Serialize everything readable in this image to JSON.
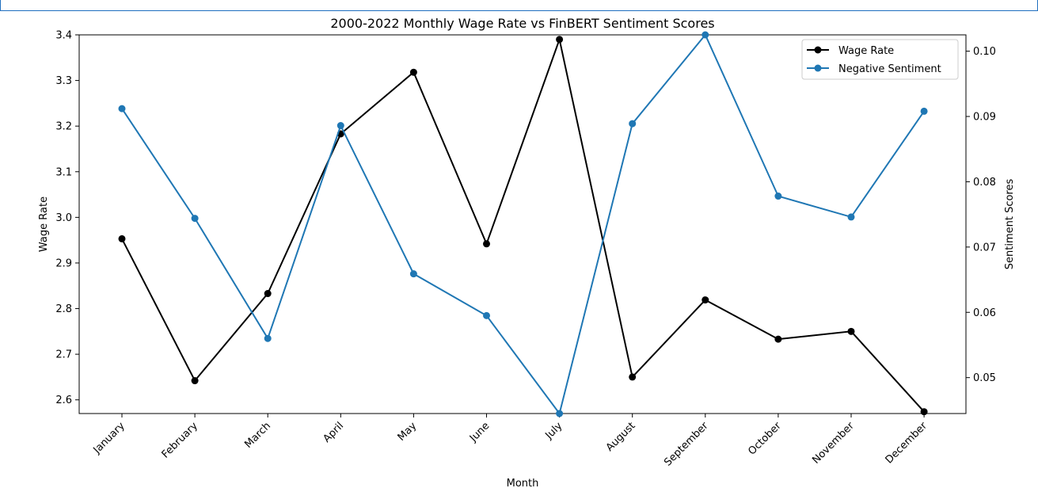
{
  "chart_data": {
    "type": "line",
    "title": "2000-2022 Monthly Wage Rate vs FinBERT Sentiment Scores",
    "xlabel": "Month",
    "ylabel_left": "Wage Rate",
    "ylabel_right": "Sentiment Scores",
    "categories": [
      "January",
      "February",
      "March",
      "April",
      "May",
      "June",
      "July",
      "August",
      "September",
      "October",
      "November",
      "December"
    ],
    "y_left_ticks": [
      "2.6",
      "2.7",
      "2.8",
      "2.9",
      "3.0",
      "3.1",
      "3.2",
      "3.3",
      "3.4"
    ],
    "y_right_ticks": [
      "0.05",
      "0.06",
      "0.07",
      "0.08",
      "0.09",
      "0.10"
    ],
    "y_left_range": [
      2.57,
      3.4
    ],
    "y_right_range": [
      0.0445,
      0.1025
    ],
    "grid": false,
    "legend_position": "top-right",
    "series": [
      {
        "name": "Wage Rate",
        "axis": "left",
        "color": "#000000",
        "values": [
          2.953,
          2.642,
          2.833,
          3.183,
          3.318,
          2.942,
          3.39,
          2.65,
          2.819,
          2.733,
          2.75,
          2.574
        ]
      },
      {
        "name": "Negative Sentiment",
        "axis": "right",
        "color": "#1f77b4",
        "values": [
          0.0912,
          0.0744,
          0.056,
          0.0886,
          0.0659,
          0.0595,
          0.0445,
          0.0889,
          0.1025,
          0.0778,
          0.0746,
          0.0908
        ]
      }
    ]
  }
}
